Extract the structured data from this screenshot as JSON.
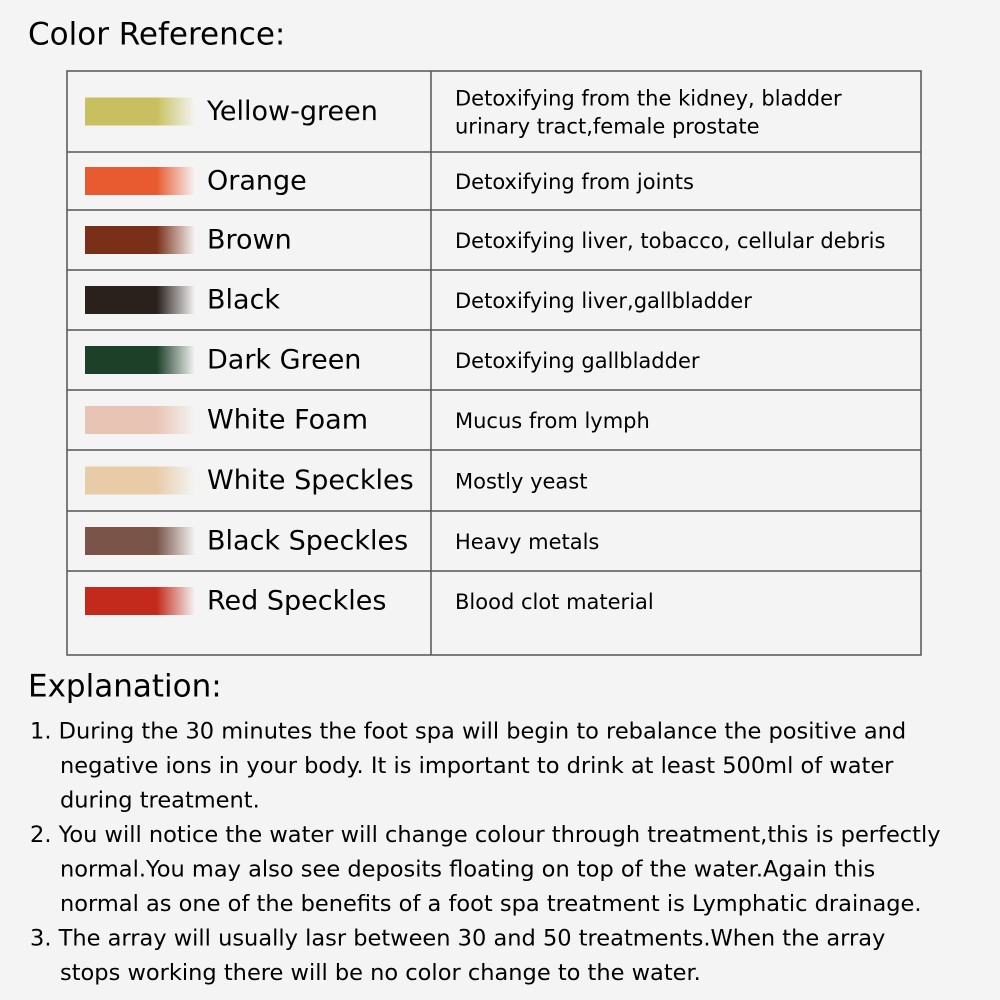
{
  "header": {
    "title": "Color Reference:"
  },
  "table": {
    "rows": [
      {
        "swatch": "#c8c060",
        "name": "Yellow-green",
        "description": [
          "Detoxifying from the kidney, bladder",
          "urinary tract,female prostate"
        ]
      },
      {
        "swatch": "#e85a30",
        "name": "Orange",
        "description": [
          "Detoxifying from joints"
        ]
      },
      {
        "swatch": "#7a3018",
        "name": "Brown",
        "description": [
          "Detoxifying liver, tobacco, cellular debris"
        ]
      },
      {
        "swatch": "#2a201c",
        "name": "Black",
        "description": [
          "Detoxifying liver,gallbladder"
        ]
      },
      {
        "swatch": "#1c4028",
        "name": "Dark Green",
        "description": [
          "Detoxifying gallbladder"
        ]
      },
      {
        "swatch": "#e8c4b4",
        "name": "White Foam",
        "description": [
          "Mucus from lymph"
        ]
      },
      {
        "swatch": "#e8cca8",
        "name": "White Speckles",
        "description": [
          "Mostly yeast"
        ]
      },
      {
        "swatch": "#7a5448",
        "name": "Black Speckles",
        "description": [
          "Heavy metals"
        ]
      },
      {
        "swatch": "#c42a1c",
        "name": "Red Speckles",
        "description": [
          "Blood clot material"
        ]
      }
    ]
  },
  "explanation": {
    "title": "Explanation:",
    "items": [
      {
        "lines": [
          "1. During the 30 minutes the foot spa will begin to rebalance the positive and",
          "negative ions in your body. It is important to drink at least 500ml of water",
          "during treatment."
        ]
      },
      {
        "lines": [
          "2. You will notice the water will change colour through treatment,this is perfectly",
          "normal.You may also see deposits floating on top of the water.Again this",
          "normal as one of the benefits of a foot spa treatment is Lymphatic drainage."
        ]
      },
      {
        "lines": [
          "3. The array will usually lasr between 30 and 50 treatments.When the array",
          "stops working there will be no color change to the water."
        ]
      }
    ]
  }
}
